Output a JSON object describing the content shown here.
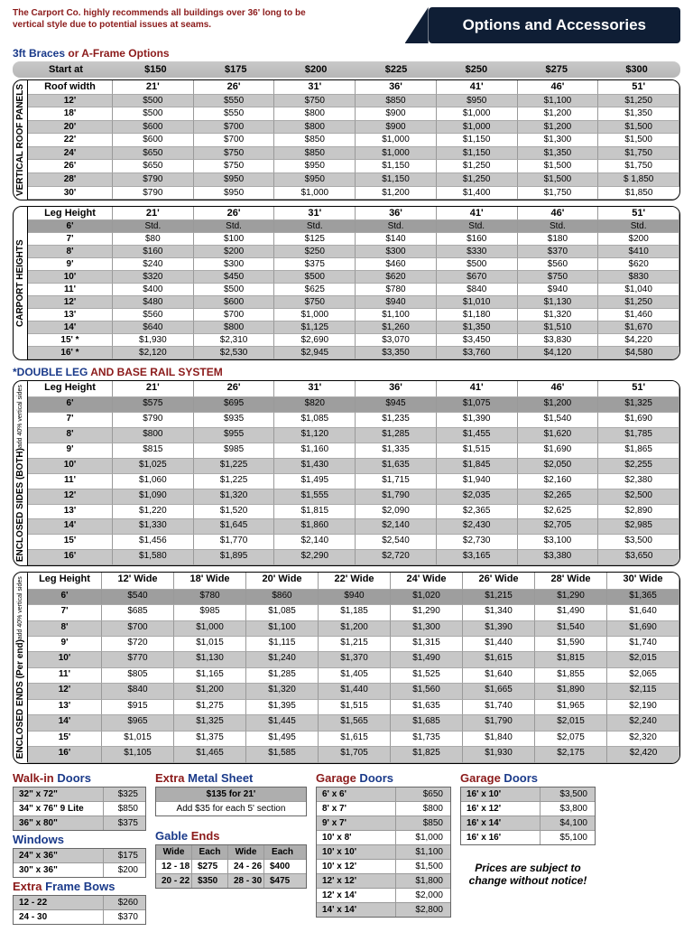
{
  "top": {
    "recommend": "The Carport Co. highly recommends all buildings over 36' long to be vertical style due to potential issues at seams.",
    "badge": "Options and Accessories",
    "braces_title_a": "3ft Braces",
    "braces_title_b": " or ",
    "braces_title_c": "A-Frame Options"
  },
  "startbar": {
    "label": "Start at",
    "vals": [
      "$150",
      "$175",
      "$200",
      "$225",
      "$250",
      "$275",
      "$300"
    ]
  },
  "vertical_roof": {
    "side": "VERTICAL ROOF PANELS",
    "header": [
      "Roof width",
      "21'",
      "26'",
      "31'",
      "36'",
      "41'",
      "46'",
      "51'"
    ],
    "rows": [
      [
        "12'",
        "$500",
        "$550",
        "$750",
        "$850",
        "$950",
        "$1,100",
        "$1,250"
      ],
      [
        "18'",
        "$500",
        "$550",
        "$800",
        "$900",
        "$1,000",
        "$1,200",
        "$1,350"
      ],
      [
        "20'",
        "$600",
        "$700",
        "$800",
        "$900",
        "$1,000",
        "$1,200",
        "$1,500"
      ],
      [
        "22'",
        "$600",
        "$700",
        "$850",
        "$1,000",
        "$1,150",
        "$1,300",
        "$1,500"
      ],
      [
        "24'",
        "$650",
        "$750",
        "$850",
        "$1,000",
        "$1,150",
        "$1,350",
        "$1,750"
      ],
      [
        "26'",
        "$650",
        "$750",
        "$950",
        "$1,150",
        "$1,250",
        "$1,500",
        "$1,750"
      ],
      [
        "28'",
        "$790",
        "$950",
        "$950",
        "$1,150",
        "$1,250",
        "$1,500",
        "$ 1,850"
      ],
      [
        "30'",
        "$790",
        "$950",
        "$1,000",
        "$1,200",
        "$1,400",
        "$1,750",
        "$1,850"
      ]
    ]
  },
  "carport_heights": {
    "side": "CARPORT HEIGHTS",
    "header": [
      "Leg Height",
      "21'",
      "26'",
      "31'",
      "36'",
      "41'",
      "46'",
      "51'"
    ],
    "rows": [
      [
        "6'",
        "Std.",
        "Std.",
        "Std.",
        "Std.",
        "Std.",
        "Std.",
        "Std."
      ],
      [
        "7'",
        "$80",
        "$100",
        "$125",
        "$140",
        "$160",
        "$180",
        "$200"
      ],
      [
        "8'",
        "$160",
        "$200",
        "$250",
        "$300",
        "$330",
        "$370",
        "$410"
      ],
      [
        "9'",
        "$240",
        "$300",
        "$375",
        "$460",
        "$500",
        "$560",
        "$620"
      ],
      [
        "10'",
        "$320",
        "$450",
        "$500",
        "$620",
        "$670",
        "$750",
        "$830"
      ],
      [
        "11'",
        "$400",
        "$500",
        "$625",
        "$780",
        "$840",
        "$940",
        "$1,040"
      ],
      [
        "12'",
        "$480",
        "$600",
        "$750",
        "$940",
        "$1,010",
        "$1,130",
        "$1,250"
      ],
      [
        "13'",
        "$560",
        "$700",
        "$1,000",
        "$1,100",
        "$1,180",
        "$1,320",
        "$1,460"
      ],
      [
        "14'",
        "$640",
        "$800",
        "$1,125",
        "$1,260",
        "$1,350",
        "$1,510",
        "$1,670"
      ],
      [
        "15' *",
        "$1,930",
        "$2,310",
        "$2,690",
        "$3,070",
        "$3,450",
        "$3,830",
        "$4,220"
      ],
      [
        "16' *",
        "$2,120",
        "$2,530",
        "$2,945",
        "$3,350",
        "$3,760",
        "$4,120",
        "$4,580"
      ]
    ]
  },
  "double_leg_label_a": "*DOUBLE LEG",
  "double_leg_label_b": "  AND BASE RAIL SYSTEM",
  "enclosed_sides": {
    "side": "ENCLOSED SIDES (BOTH)",
    "sub": "add 40% vertical sides",
    "header": [
      "Leg Height",
      "21'",
      "26'",
      "31'",
      "36'",
      "41'",
      "46'",
      "51'"
    ],
    "rows": [
      [
        "6'",
        "$575",
        "$695",
        "$820",
        "$945",
        "$1,075",
        "$1,200",
        "$1,325"
      ],
      [
        "7'",
        "$790",
        "$935",
        "$1,085",
        "$1,235",
        "$1,390",
        "$1,540",
        "$1,690"
      ],
      [
        "8'",
        "$800",
        "$955",
        "$1,120",
        "$1,285",
        "$1,455",
        "$1,620",
        "$1,785"
      ],
      [
        "9'",
        "$815",
        "$985",
        "$1,160",
        "$1,335",
        "$1,515",
        "$1,690",
        "$1,865"
      ],
      [
        "10'",
        "$1,025",
        "$1,225",
        "$1,430",
        "$1,635",
        "$1,845",
        "$2,050",
        "$2,255"
      ],
      [
        "11'",
        "$1,060",
        "$1,225",
        "$1,495",
        "$1,715",
        "$1,940",
        "$2,160",
        "$2,380"
      ],
      [
        "12'",
        "$1,090",
        "$1,320",
        "$1,555",
        "$1,790",
        "$2,035",
        "$2,265",
        "$2,500"
      ],
      [
        "13'",
        "$1,220",
        "$1,520",
        "$1,815",
        "$2,090",
        "$2,365",
        "$2,625",
        "$2,890"
      ],
      [
        "14'",
        "$1,330",
        "$1,645",
        "$1,860",
        "$2,140",
        "$2,430",
        "$2,705",
        "$2,985"
      ],
      [
        "15'",
        "$1,456",
        "$1,770",
        "$2,140",
        "$2,540",
        "$2,730",
        "$3,100",
        "$3,500"
      ],
      [
        "16'",
        "$1,580",
        "$1,895",
        "$2,290",
        "$2,720",
        "$3,165",
        "$3,380",
        "$3,650"
      ]
    ]
  },
  "enclosed_ends": {
    "side": "ENCLOSED ENDS (Per end)",
    "sub": "add 40% vertical sides",
    "header": [
      "Leg Height",
      "12' Wide",
      "18' Wide",
      "20' Wide",
      "22' Wide",
      "24' Wide",
      "26' Wide",
      "28' Wide",
      "30' Wide"
    ],
    "rows": [
      [
        "6'",
        "$540",
        "$780",
        "$860",
        "$940",
        "$1,020",
        "$1,215",
        "$1,290",
        "$1,365"
      ],
      [
        "7'",
        "$685",
        "$985",
        "$1,085",
        "$1,185",
        "$1,290",
        "$1,340",
        "$1,490",
        "$1,640"
      ],
      [
        "8'",
        "$700",
        "$1,000",
        "$1,100",
        "$1,200",
        "$1,300",
        "$1,390",
        "$1,540",
        "$1,690"
      ],
      [
        "9'",
        "$720",
        "$1,015",
        "$1,115",
        "$1,215",
        "$1,315",
        "$1,440",
        "$1,590",
        "$1,740"
      ],
      [
        "10'",
        "$770",
        "$1,130",
        "$1,240",
        "$1,370",
        "$1,490",
        "$1,615",
        "$1,815",
        "$2,015"
      ],
      [
        "11'",
        "$805",
        "$1,165",
        "$1,285",
        "$1,405",
        "$1,525",
        "$1,640",
        "$1,855",
        "$2,065"
      ],
      [
        "12'",
        "$840",
        "$1,200",
        "$1,320",
        "$1,440",
        "$1,560",
        "$1,665",
        "$1,890",
        "$2,115"
      ],
      [
        "13'",
        "$915",
        "$1,275",
        "$1,395",
        "$1,515",
        "$1,635",
        "$1,740",
        "$1,965",
        "$2,190"
      ],
      [
        "14'",
        "$965",
        "$1,325",
        "$1,445",
        "$1,565",
        "$1,685",
        "$1,790",
        "$2,015",
        "$2,240"
      ],
      [
        "15'",
        "$1,015",
        "$1,375",
        "$1,495",
        "$1,615",
        "$1,735",
        "$1,840",
        "$2,075",
        "$2,320"
      ],
      [
        "16'",
        "$1,105",
        "$1,465",
        "$1,585",
        "$1,705",
        "$1,825",
        "$1,930",
        "$2,175",
        "$2,420"
      ]
    ]
  },
  "walkin": {
    "title_a": "Walk-in",
    "title_b": " Doors",
    "rows": [
      [
        "32\" x 72\"",
        "$325"
      ],
      [
        "34\" x 76\" 9 Lite",
        "$850"
      ],
      [
        "36\" x 80\"",
        "$375"
      ]
    ]
  },
  "windows": {
    "title": "Windows",
    "rows": [
      [
        "24\" x 36\"",
        "$175"
      ],
      [
        "30\" x 36\"",
        "$200"
      ]
    ]
  },
  "bows": {
    "title_a": "Extra",
    "title_b": " Frame Bows",
    "rows": [
      [
        "12 - 22",
        "$260"
      ],
      [
        "24 - 30",
        "$370"
      ]
    ]
  },
  "sheet": {
    "title_a": "Extra",
    "title_b": " Metal Sheet",
    "hdr": "$135 for 21'",
    "note": "Add $35 for each 5' section"
  },
  "gable": {
    "title_a": "Gable",
    "title_b": "  Ends",
    "cols": [
      "Wide",
      "Each",
      "Wide",
      "Each"
    ],
    "rows": [
      [
        "12 - 18",
        "$275",
        "24 - 26",
        "$400"
      ],
      [
        "20 - 22",
        "$350",
        "28 - 30",
        "$475"
      ]
    ]
  },
  "gd1": {
    "title_a": "Garage",
    "title_b": " Doors",
    "rows": [
      [
        "6' x 6'",
        "$650"
      ],
      [
        "8' x 7'",
        "$800"
      ],
      [
        "9' x 7'",
        "$850"
      ],
      [
        "10' x 8'",
        "$1,000"
      ],
      [
        "10' x 10'",
        "$1,100"
      ],
      [
        "10' x 12'",
        "$1,500"
      ],
      [
        "12' x 12'",
        "$1,800"
      ],
      [
        "12' x 14'",
        "$2,000"
      ],
      [
        "14' x 14'",
        "$2,800"
      ]
    ]
  },
  "gd2": {
    "title_a": "Garage",
    "title_b": " Doors",
    "rows": [
      [
        "16' x 10'",
        "$3,500"
      ],
      [
        "16' x 12'",
        "$3,800"
      ],
      [
        "16' x 14'",
        "$4,100"
      ],
      [
        "16' x 16'",
        "$5,100"
      ]
    ]
  },
  "notice": "Prices are subject to change without notice!"
}
